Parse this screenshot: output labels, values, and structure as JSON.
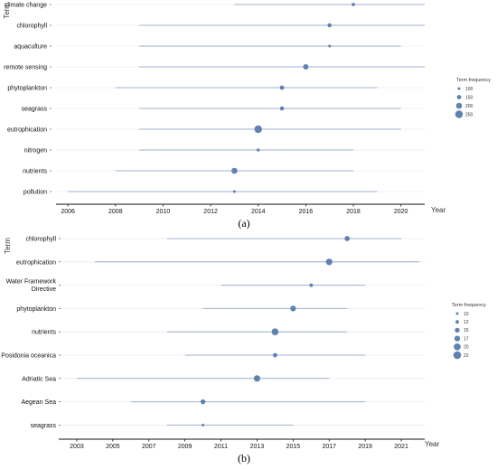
{
  "chart_data": [
    {
      "type": "scatter",
      "subtype": "range-dot timeline",
      "panel_label": "(a)",
      "ylabel": "Term",
      "xlabel": "Year",
      "xlim": [
        2005.5,
        2021.0
      ],
      "xticks": [
        2006,
        2008,
        2010,
        2012,
        2014,
        2016,
        2018,
        2020
      ],
      "grid": true,
      "legend_position": "right",
      "legend": {
        "title": "Term frequency",
        "entries": [
          {
            "label": "100",
            "value": 100
          },
          {
            "label": "150",
            "value": 150
          },
          {
            "label": "200",
            "value": 200
          },
          {
            "label": "250",
            "value": 250
          }
        ]
      },
      "terms": [
        {
          "label": "climate change",
          "start": 2013.0,
          "median": 2018.0,
          "end": 2021.0,
          "frequency": 120
        },
        {
          "label": "chlorophyll",
          "start": 2009.0,
          "median": 2017.0,
          "end": 2021.0,
          "frequency": 140
        },
        {
          "label": "aquaculture",
          "start": 2009.0,
          "median": 2017.0,
          "end": 2020.0,
          "frequency": 100
        },
        {
          "label": "remote sensing",
          "start": 2009.0,
          "median": 2016.0,
          "end": 2021.0,
          "frequency": 180
        },
        {
          "label": "phytoplankton",
          "start": 2008.0,
          "median": 2015.0,
          "end": 2019.0,
          "frequency": 150
        },
        {
          "label": "seagrass",
          "start": 2009.0,
          "median": 2015.0,
          "end": 2020.0,
          "frequency": 140
        },
        {
          "label": "eutrophication",
          "start": 2009.0,
          "median": 2014.0,
          "end": 2020.0,
          "frequency": 250
        },
        {
          "label": "nitrogen",
          "start": 2009.0,
          "median": 2014.0,
          "end": 2018.0,
          "frequency": 110
        },
        {
          "label": "nutrients",
          "start": 2008.0,
          "median": 2013.0,
          "end": 2018.0,
          "frequency": 200
        },
        {
          "label": "pollution",
          "start": 2006.0,
          "median": 2013.0,
          "end": 2019.0,
          "frequency": 90
        }
      ]
    },
    {
      "type": "scatter",
      "subtype": "range-dot timeline",
      "panel_label": "(b)",
      "ylabel": "Term",
      "xlabel": "Year",
      "xlim": [
        2002.0,
        2022.3
      ],
      "xticks": [
        2003,
        2005,
        2007,
        2009,
        2011,
        2013,
        2015,
        2017,
        2019,
        2021
      ],
      "grid": true,
      "legend_position": "right",
      "legend": {
        "title": "Term frequency",
        "entries": [
          {
            "label": "10",
            "value": 10
          },
          {
            "label": "12",
            "value": 12
          },
          {
            "label": "15",
            "value": 15
          },
          {
            "label": "17",
            "value": 17
          },
          {
            "label": "20",
            "value": 20
          },
          {
            "label": "22",
            "value": 22
          }
        ]
      },
      "terms": [
        {
          "label": "chlorophyll",
          "start": 2008.0,
          "median": 2018.0,
          "end": 2021.0,
          "frequency": 16
        },
        {
          "label": "eutrophication",
          "start": 2004.0,
          "median": 2017.0,
          "end": 2022.0,
          "frequency": 19
        },
        {
          "label": "Water Framework Directive",
          "start": 2011.0,
          "median": 2016.0,
          "end": 2019.0,
          "frequency": 12
        },
        {
          "label": "phytoplankton",
          "start": 2010.0,
          "median": 2015.0,
          "end": 2018.0,
          "frequency": 17
        },
        {
          "label": "nutrients",
          "start": 2008.0,
          "median": 2014.0,
          "end": 2018.0,
          "frequency": 20
        },
        {
          "label": "Posidonia oceanica",
          "start": 2009.0,
          "median": 2014.0,
          "end": 2019.0,
          "frequency": 14
        },
        {
          "label": "Adriatic Sea",
          "start": 2003.0,
          "median": 2013.0,
          "end": 2017.0,
          "frequency": 19
        },
        {
          "label": "Aegean Sea",
          "start": 2006.0,
          "median": 2010.0,
          "end": 2019.0,
          "frequency": 15
        },
        {
          "label": "seagrass",
          "start": 2008.0,
          "median": 2010.0,
          "end": 2015.0,
          "frequency": 10
        }
      ]
    }
  ],
  "colors": {
    "marker": "#5f82b0",
    "range_line": "#9fb0cc",
    "gridline": "#ececec",
    "axis": "#111111",
    "text": "#111111"
  }
}
